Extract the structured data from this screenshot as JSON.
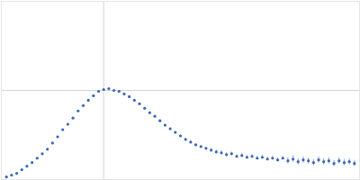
{
  "chart_data": {
    "type": "scatter",
    "color": "#3a66b5",
    "marker": "circle",
    "grid": true,
    "tick_labels": false,
    "xlim": [
      0,
      3.5
    ],
    "xticks": [
      1
    ],
    "ylim": [
      0,
      2
    ],
    "yticks": [
      1
    ],
    "x": [
      0.05,
      0.1,
      0.15,
      0.2,
      0.25,
      0.3,
      0.35,
      0.4,
      0.45,
      0.5,
      0.55,
      0.6,
      0.65,
      0.7,
      0.75,
      0.8,
      0.85,
      0.9,
      0.95,
      1.0,
      1.05,
      1.1,
      1.15,
      1.2,
      1.25,
      1.3,
      1.35,
      1.4,
      1.45,
      1.5,
      1.55,
      1.6,
      1.65,
      1.7,
      1.75,
      1.8,
      1.85,
      1.9,
      1.95,
      2.0,
      2.05,
      2.1,
      2.15,
      2.2,
      2.25,
      2.3,
      2.35,
      2.4,
      2.45,
      2.5,
      2.55,
      2.6,
      2.65,
      2.7,
      2.75,
      2.8,
      2.85,
      2.9,
      2.95,
      3.0,
      3.05,
      3.1,
      3.15,
      3.2,
      3.25,
      3.3,
      3.35,
      3.4,
      3.45
    ],
    "values": [
      0.03,
      0.05,
      0.07,
      0.11,
      0.15,
      0.19,
      0.24,
      0.29,
      0.34,
      0.41,
      0.48,
      0.56,
      0.62,
      0.69,
      0.77,
      0.83,
      0.89,
      0.94,
      0.99,
      1.01,
      1.02,
      1.0,
      0.99,
      0.96,
      0.93,
      0.89,
      0.85,
      0.8,
      0.75,
      0.71,
      0.66,
      0.61,
      0.57,
      0.53,
      0.49,
      0.45,
      0.42,
      0.39,
      0.37,
      0.35,
      0.33,
      0.31,
      0.3,
      0.28,
      0.29,
      0.26,
      0.27,
      0.25,
      0.26,
      0.24,
      0.25,
      0.23,
      0.24,
      0.22,
      0.24,
      0.21,
      0.23,
      0.2,
      0.22,
      0.21,
      0.19,
      0.22,
      0.2,
      0.21,
      0.18,
      0.21,
      0.19,
      0.2,
      0.18
    ],
    "errors": [
      0.005,
      0.005,
      0.005,
      0.005,
      0.005,
      0.005,
      0.005,
      0.005,
      0.005,
      0.005,
      0.005,
      0.005,
      0.005,
      0.005,
      0.005,
      0.005,
      0.005,
      0.005,
      0.005,
      0.005,
      0.01,
      0.01,
      0.01,
      0.01,
      0.01,
      0.01,
      0.01,
      0.01,
      0.01,
      0.01,
      0.01,
      0.01,
      0.01,
      0.01,
      0.01,
      0.01,
      0.01,
      0.01,
      0.01,
      0.01,
      0.02,
      0.02,
      0.02,
      0.02,
      0.02,
      0.02,
      0.02,
      0.02,
      0.02,
      0.02,
      0.02,
      0.02,
      0.02,
      0.02,
      0.02,
      0.035,
      0.035,
      0.035,
      0.035,
      0.035,
      0.035,
      0.035,
      0.035,
      0.035,
      0.035,
      0.035,
      0.035,
      0.035,
      0.035
    ]
  }
}
